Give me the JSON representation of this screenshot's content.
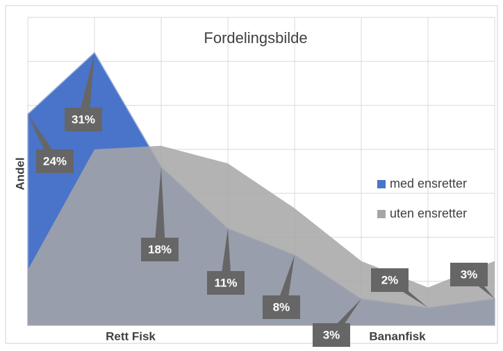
{
  "chart_data": {
    "type": "area",
    "title": "Fordelingsbilde",
    "y_label": "Andel",
    "categories": [
      null,
      "Rett Fisk",
      null,
      null,
      null,
      "Bananfisk",
      null,
      null
    ],
    "series": [
      {
        "name": "med ensretter",
        "color": "#4a74c9",
        "values": [
          24,
          31,
          18,
          11,
          8,
          3,
          2,
          3
        ],
        "value_labels": [
          "24%",
          "31%",
          "18%",
          "11%",
          "8%",
          "3%",
          "2%",
          "3%"
        ]
      },
      {
        "name": "uten ensretter",
        "color": "#a6a6a6",
        "values": [
          6.3,
          20,
          20.4,
          18.4,
          13.3,
          7.3,
          4.3,
          7.3
        ]
      }
    ],
    "ylim": [
      0,
      35
    ],
    "yticks": [
      0,
      5,
      10,
      15,
      20,
      25,
      30,
      35
    ],
    "grid": true,
    "legend": "right"
  }
}
